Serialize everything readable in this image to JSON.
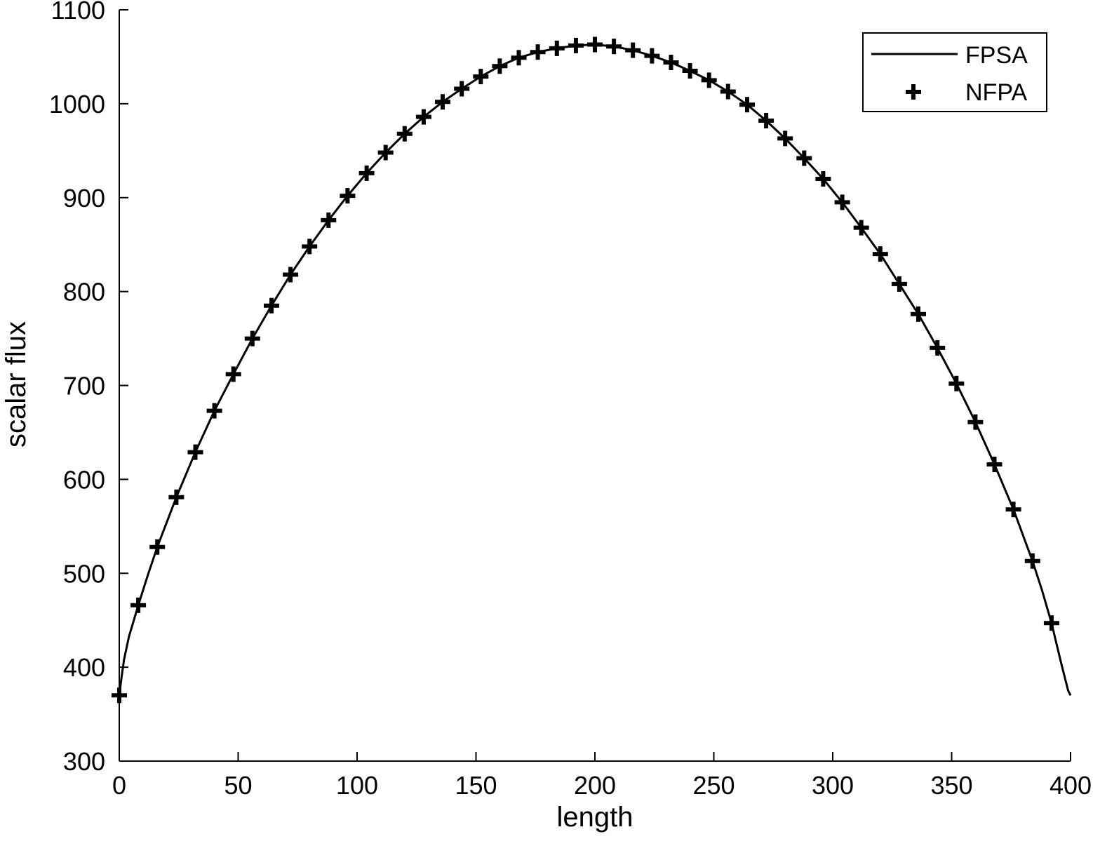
{
  "chart_data": {
    "type": "line",
    "xlabel": "length",
    "ylabel": "scalar flux",
    "xlim": [
      0,
      400
    ],
    "ylim": [
      300,
      1100
    ],
    "xticks": [
      0,
      50,
      100,
      150,
      200,
      250,
      300,
      350,
      400
    ],
    "yticks": [
      300,
      400,
      500,
      600,
      700,
      800,
      900,
      1000,
      1100
    ],
    "grid": false,
    "legend_position": "top-right",
    "series": [
      {
        "name": "FPSA",
        "style": "solid-line",
        "color": "#000000",
        "x": [
          0,
          1,
          2,
          4,
          8,
          12,
          16,
          24,
          32,
          40,
          48,
          56,
          64,
          72,
          80,
          88,
          96,
          104,
          112,
          120,
          128,
          136,
          144,
          152,
          160,
          168,
          176,
          184,
          192,
          200,
          208,
          216,
          224,
          232,
          240,
          248,
          256,
          264,
          272,
          280,
          288,
          296,
          304,
          312,
          320,
          328,
          336,
          344,
          352,
          360,
          368,
          376,
          384,
          388,
          392,
          396,
          398,
          399,
          400
        ],
        "y": [
          370,
          390,
          408,
          432,
          466,
          498,
          528,
          581,
          629,
          673,
          712,
          750,
          785,
          818,
          848,
          876,
          902,
          926,
          948,
          968,
          986,
          1002,
          1016,
          1029,
          1040,
          1049,
          1055,
          1059,
          1062,
          1063,
          1061,
          1057,
          1051,
          1044,
          1035,
          1025,
          1013,
          999,
          982,
          963,
          942,
          920,
          895,
          868,
          840,
          808,
          776,
          740,
          702,
          661,
          616,
          568,
          513,
          482,
          447,
          405,
          385,
          375,
          370
        ]
      },
      {
        "name": "NFPA",
        "style": "plus-marker",
        "color": "#000000",
        "x": [
          0,
          8,
          16,
          24,
          32,
          40,
          48,
          56,
          64,
          72,
          80,
          88,
          96,
          104,
          112,
          120,
          128,
          136,
          144,
          152,
          160,
          168,
          176,
          184,
          192,
          200,
          208,
          216,
          224,
          232,
          240,
          248,
          256,
          264,
          272,
          280,
          288,
          296,
          304,
          312,
          320,
          328,
          336,
          344,
          352,
          360,
          368,
          376,
          384,
          392
        ],
        "y": [
          370,
          466,
          528,
          581,
          629,
          673,
          712,
          750,
          785,
          818,
          848,
          876,
          902,
          926,
          948,
          968,
          986,
          1002,
          1016,
          1029,
          1040,
          1049,
          1055,
          1059,
          1062,
          1063,
          1061,
          1057,
          1051,
          1044,
          1035,
          1025,
          1013,
          999,
          982,
          963,
          942,
          920,
          895,
          868,
          840,
          808,
          776,
          740,
          702,
          661,
          616,
          568,
          513,
          447
        ]
      }
    ]
  }
}
